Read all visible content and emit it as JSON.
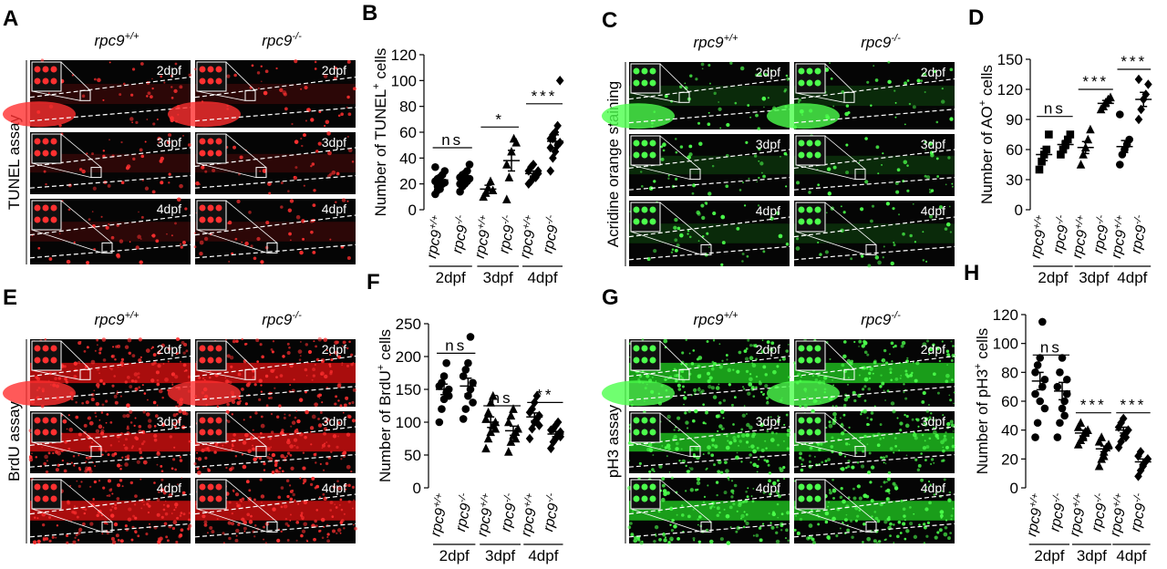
{
  "panels": [
    {
      "letter": "A",
      "label": "TUNEL assay",
      "color": "red",
      "columns": [
        {
          "base": "rpc9",
          "sup": "+/+"
        },
        {
          "base": "rpc9",
          "sup": "-/-"
        }
      ],
      "rows": [
        "2dpf",
        "3dpf",
        "4dpf"
      ]
    },
    {
      "letter": "C",
      "label": "Acridine orange staining",
      "color": "green",
      "columns": [
        {
          "base": "rpc9",
          "sup": "+/+"
        },
        {
          "base": "rpc9",
          "sup": "-/-"
        }
      ],
      "rows": [
        "2dpf",
        "3dpf",
        "4dpf"
      ]
    },
    {
      "letter": "E",
      "label": "BrdU assay",
      "color": "red",
      "columns": [
        {
          "base": "rpc9",
          "sup": "+/+"
        },
        {
          "base": "rpc9",
          "sup": "-/-"
        }
      ],
      "rows": [
        "2dpf",
        "3dpf",
        "4dpf"
      ]
    },
    {
      "letter": "G",
      "label": "pH3 assay",
      "color": "green",
      "columns": [
        {
          "base": "rpc9",
          "sup": "+/+"
        },
        {
          "base": "rpc9",
          "sup": "-/-"
        }
      ],
      "rows": [
        "2dpf",
        "3dpf",
        "4dpf"
      ]
    }
  ],
  "chart_data": [
    {
      "type": "dot",
      "letter": "B",
      "y_label": {
        "text": "Number of TUNEL",
        "sup": "+",
        "suffix": " cells"
      },
      "ylim": [
        0,
        120
      ],
      "yticks": [
        0,
        20,
        40,
        60,
        80,
        100,
        120
      ],
      "x_labels": [
        {
          "base": "rpc9",
          "sup": "+/+"
        },
        {
          "base": "rpc9",
          "sup": "-/-"
        },
        {
          "base": "rpc9",
          "sup": "+/+"
        },
        {
          "base": "rpc9",
          "sup": "-/-"
        },
        {
          "base": "rpc9",
          "sup": "+/+"
        },
        {
          "base": "rpc9",
          "sup": "-/-"
        }
      ],
      "groups": [
        "2dpf",
        "3dpf",
        "4dpf"
      ],
      "series": [
        {
          "marker": "circle",
          "values": [
            12,
            15,
            18,
            20,
            21,
            22,
            24,
            25,
            27,
            30,
            33,
            18,
            16
          ],
          "mean": 23,
          "sem": 2
        },
        {
          "marker": "circle",
          "values": [
            14,
            18,
            20,
            22,
            24,
            25,
            27,
            28,
            30,
            35,
            20,
            23
          ],
          "mean": 25,
          "sem": 2
        },
        {
          "marker": "triangle",
          "values": [
            10,
            13,
            17,
            22,
            15
          ],
          "mean": 16,
          "sem": 3
        },
        {
          "marker": "triangle",
          "values": [
            8,
            25,
            45,
            55,
            52,
            35
          ],
          "mean": 38,
          "sem": 8
        },
        {
          "marker": "diamond",
          "values": [
            20,
            22,
            25,
            27,
            28,
            30,
            33,
            35,
            25,
            30
          ],
          "mean": 28,
          "sem": 2
        },
        {
          "marker": "diamond",
          "values": [
            30,
            40,
            45,
            50,
            52,
            55,
            58,
            60,
            65,
            100,
            48,
            55
          ],
          "mean": 53,
          "sem": 5
        }
      ],
      "significance": [
        {
          "label": "ns",
          "y": 48
        },
        {
          "label": "*",
          "y": 64
        },
        {
          "label": "***",
          "y": 82
        }
      ]
    },
    {
      "type": "dot",
      "letter": "D",
      "y_label": {
        "text": "Number of AO",
        "sup": "+",
        "suffix": " cells"
      },
      "ylim": [
        0,
        150
      ],
      "yticks": [
        0,
        30,
        60,
        90,
        120,
        150
      ],
      "x_labels": [
        {
          "base": "rpc9",
          "sup": "+/+"
        },
        {
          "base": "rpc9",
          "sup": "-/-"
        },
        {
          "base": "rpc9",
          "sup": "+/+"
        },
        {
          "base": "rpc9",
          "sup": "-/-"
        },
        {
          "base": "rpc9",
          "sup": "+/+"
        },
        {
          "base": "rpc9",
          "sup": "-/-"
        }
      ],
      "groups": [
        "2dpf",
        "3dpf",
        "4dpf"
      ],
      "series": [
        {
          "marker": "square",
          "values": [
            40,
            48,
            55,
            60,
            75
          ],
          "mean": 55,
          "sem": 6
        },
        {
          "marker": "square",
          "values": [
            55,
            60,
            65,
            70,
            75
          ],
          "mean": 65,
          "sem": 4
        },
        {
          "marker": "triangle",
          "values": [
            45,
            55,
            62,
            70,
            80
          ],
          "mean": 62,
          "sem": 6
        },
        {
          "marker": "triangle",
          "values": [
            100,
            103,
            107,
            110,
            112
          ],
          "mean": 106,
          "sem": 3
        },
        {
          "marker": "circle",
          "values": [
            45,
            55,
            60,
            65,
            70,
            95
          ],
          "mean": 63,
          "sem": 6
        },
        {
          "marker": "diamond",
          "values": [
            90,
            100,
            110,
            115,
            125,
            130
          ],
          "mean": 110,
          "sem": 7
        }
      ],
      "significance": [
        {
          "label": "ns",
          "y": 93
        },
        {
          "label": "***",
          "y": 120
        },
        {
          "label": "***",
          "y": 140
        }
      ]
    },
    {
      "type": "dot",
      "letter": "F",
      "y_label": {
        "text": "Number of BrdU",
        "sup": "+",
        "suffix": " cells"
      },
      "ylim": [
        0,
        250
      ],
      "yticks": [
        0,
        50,
        100,
        150,
        200,
        250
      ],
      "x_labels": [
        {
          "base": "rpc9",
          "sup": "+/+"
        },
        {
          "base": "rpc9",
          "sup": "-/-"
        },
        {
          "base": "rpc9",
          "sup": "+/+"
        },
        {
          "base": "rpc9",
          "sup": "-/-"
        },
        {
          "base": "rpc9",
          "sup": "+/+"
        },
        {
          "base": "rpc9",
          "sup": "-/-"
        }
      ],
      "groups": [
        "2dpf",
        "3dpf",
        "4dpf"
      ],
      "series": [
        {
          "marker": "circle",
          "values": [
            100,
            120,
            135,
            145,
            150,
            155,
            160,
            170,
            190,
            140
          ],
          "mean": 150,
          "sem": 8
        },
        {
          "marker": "circle",
          "values": [
            105,
            120,
            140,
            150,
            160,
            170,
            180,
            190,
            230,
            130
          ],
          "mean": 155,
          "sem": 12
        },
        {
          "marker": "triangle",
          "values": [
            60,
            75,
            85,
            95,
            100,
            105,
            115,
            130,
            140,
            90
          ],
          "mean": 100,
          "sem": 8
        },
        {
          "marker": "triangle",
          "values": [
            55,
            70,
            80,
            85,
            90,
            100,
            110,
            120,
            75
          ],
          "mean": 87,
          "sem": 7
        },
        {
          "marker": "diamond",
          "values": [
            75,
            90,
            100,
            105,
            110,
            115,
            120,
            130,
            140,
            95
          ],
          "mean": 108,
          "sem": 6
        },
        {
          "marker": "diamond",
          "values": [
            60,
            70,
            75,
            80,
            85,
            88,
            90,
            95,
            100,
            78
          ],
          "mean": 82,
          "sem": 4
        }
      ],
      "significance": [
        {
          "label": "ns",
          "y": 205
        },
        {
          "label": "ns",
          "y": 125
        },
        {
          "label": "**",
          "y": 130
        }
      ]
    },
    {
      "type": "dot",
      "letter": "H",
      "y_label": {
        "text": "Number of pH3",
        "sup": "+",
        "suffix": " cells"
      },
      "ylim": [
        0,
        120
      ],
      "yticks": [
        0,
        20,
        40,
        60,
        80,
        100,
        120
      ],
      "x_labels": [
        {
          "base": "rpc9",
          "sup": "+/+"
        },
        {
          "base": "rpc9",
          "sup": "-/-"
        },
        {
          "base": "rpc9",
          "sup": "+/+"
        },
        {
          "base": "rpc9",
          "sup": "-/-"
        },
        {
          "base": "rpc9",
          "sup": "+/+"
        },
        {
          "base": "rpc9",
          "sup": "-/-"
        }
      ],
      "groups": [
        "2dpf",
        "3dpf",
        "4dpf"
      ],
      "series": [
        {
          "marker": "circle",
          "values": [
            35,
            45,
            60,
            70,
            75,
            80,
            85,
            90,
            115,
            55,
            65
          ],
          "mean": 74,
          "sem": 6
        },
        {
          "marker": "circle",
          "values": [
            35,
            45,
            55,
            60,
            65,
            70,
            80,
            90,
            50,
            75
          ],
          "mean": 67,
          "sem": 6
        },
        {
          "marker": "triangle",
          "values": [
            30,
            33,
            36,
            38,
            40,
            42,
            45,
            35,
            39
          ],
          "mean": 38,
          "sem": 2
        },
        {
          "marker": "triangle",
          "values": [
            15,
            20,
            25,
            28,
            30,
            32,
            35,
            22
          ],
          "mean": 27,
          "sem": 2
        },
        {
          "marker": "diamond",
          "values": [
            28,
            32,
            36,
            38,
            40,
            42,
            45,
            48,
            35
          ],
          "mean": 40,
          "sem": 2
        },
        {
          "marker": "diamond",
          "values": [
            8,
            12,
            15,
            18,
            20,
            22,
            25,
            16
          ],
          "mean": 18,
          "sem": 2
        }
      ],
      "significance": [
        {
          "label": "ns",
          "y": 92
        },
        {
          "label": "***",
          "y": 52
        },
        {
          "label": "***",
          "y": 52
        }
      ]
    }
  ]
}
